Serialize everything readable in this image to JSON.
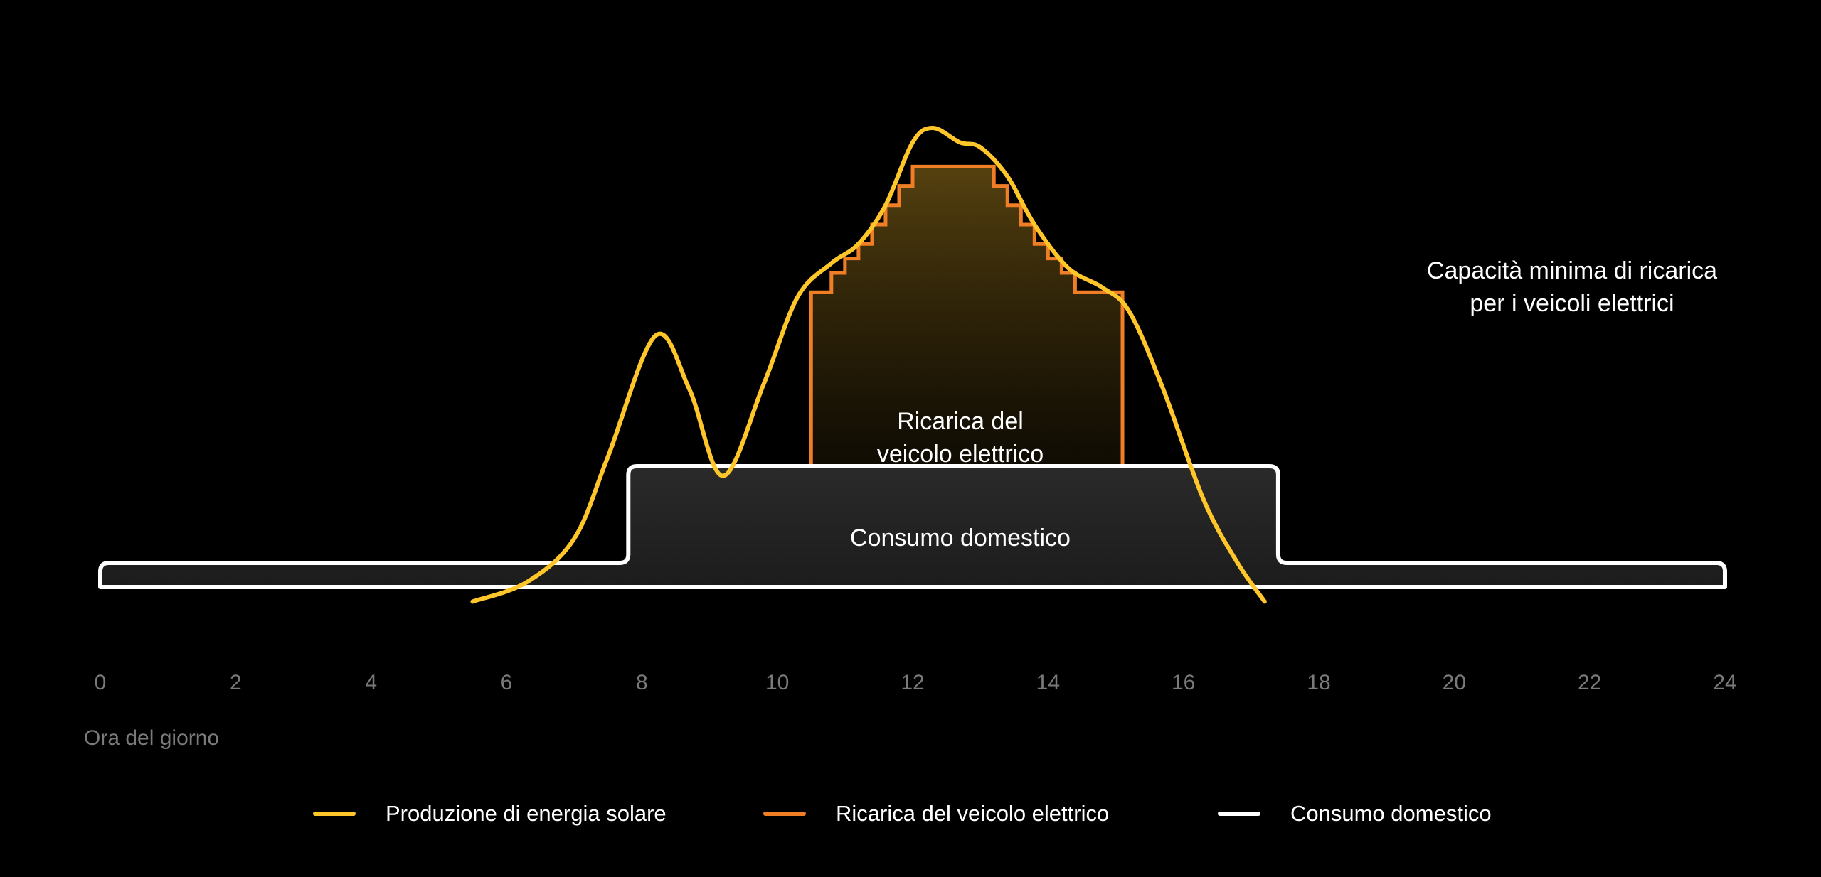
{
  "chart_data": {
    "type": "area",
    "xlabel": "Ora del giorno",
    "xlim": [
      0,
      24
    ],
    "x_ticks": [
      "0",
      "2",
      "4",
      "6",
      "8",
      "10",
      "12",
      "14",
      "16",
      "18",
      "20",
      "22",
      "24"
    ],
    "threshold_label": "Capacità minima di ricarica per i veicoli elettrici",
    "threshold_label_lines": [
      "Capacità minima di ricarica",
      "per i veicoli elettrici"
    ],
    "threshold_level": 0.66,
    "annotations": {
      "ev_area_lines": [
        "Ricarica del",
        "veicolo elettrico"
      ],
      "home_area": "Consumo domestico"
    },
    "series": [
      {
        "name": "Produzione di energia solare",
        "color": "#FFC629",
        "x": [
          5.5,
          6.3,
          7.0,
          7.5,
          8.2,
          8.7,
          9.2,
          9.8,
          10.3,
          10.8,
          11.2,
          11.6,
          12.0,
          12.3,
          12.7,
          13.0,
          13.4,
          13.8,
          14.3,
          14.8,
          15.2,
          15.7,
          16.3,
          16.8,
          17.2
        ],
        "values": [
          0.02,
          0.06,
          0.15,
          0.32,
          0.57,
          0.46,
          0.28,
          0.47,
          0.65,
          0.72,
          0.76,
          0.84,
          0.97,
          1.0,
          0.97,
          0.96,
          0.9,
          0.8,
          0.71,
          0.67,
          0.62,
          0.46,
          0.23,
          0.1,
          0.02
        ]
      },
      {
        "name": "Ricarica del veicolo elettrico",
        "color": "#F07E26",
        "x": [
          10.5,
          10.5,
          10.8,
          11.0,
          11.2,
          11.4,
          11.6,
          11.8,
          12.0,
          13.2,
          13.4,
          13.6,
          13.8,
          14.0,
          14.2,
          14.4,
          14.6,
          15.1,
          15.1
        ],
        "values": [
          0.3,
          0.66,
          0.7,
          0.73,
          0.76,
          0.8,
          0.84,
          0.88,
          0.92,
          0.92,
          0.88,
          0.84,
          0.8,
          0.76,
          0.73,
          0.7,
          0.66,
          0.66,
          0.3
        ]
      },
      {
        "name": "Consumo domestico",
        "color": "#FFFFFF",
        "x": [
          0,
          7.8,
          7.8,
          17.4,
          17.4,
          24
        ],
        "values": [
          0.1,
          0.1,
          0.3,
          0.3,
          0.1,
          0.1
        ]
      }
    ],
    "legend_position": "bottom"
  }
}
